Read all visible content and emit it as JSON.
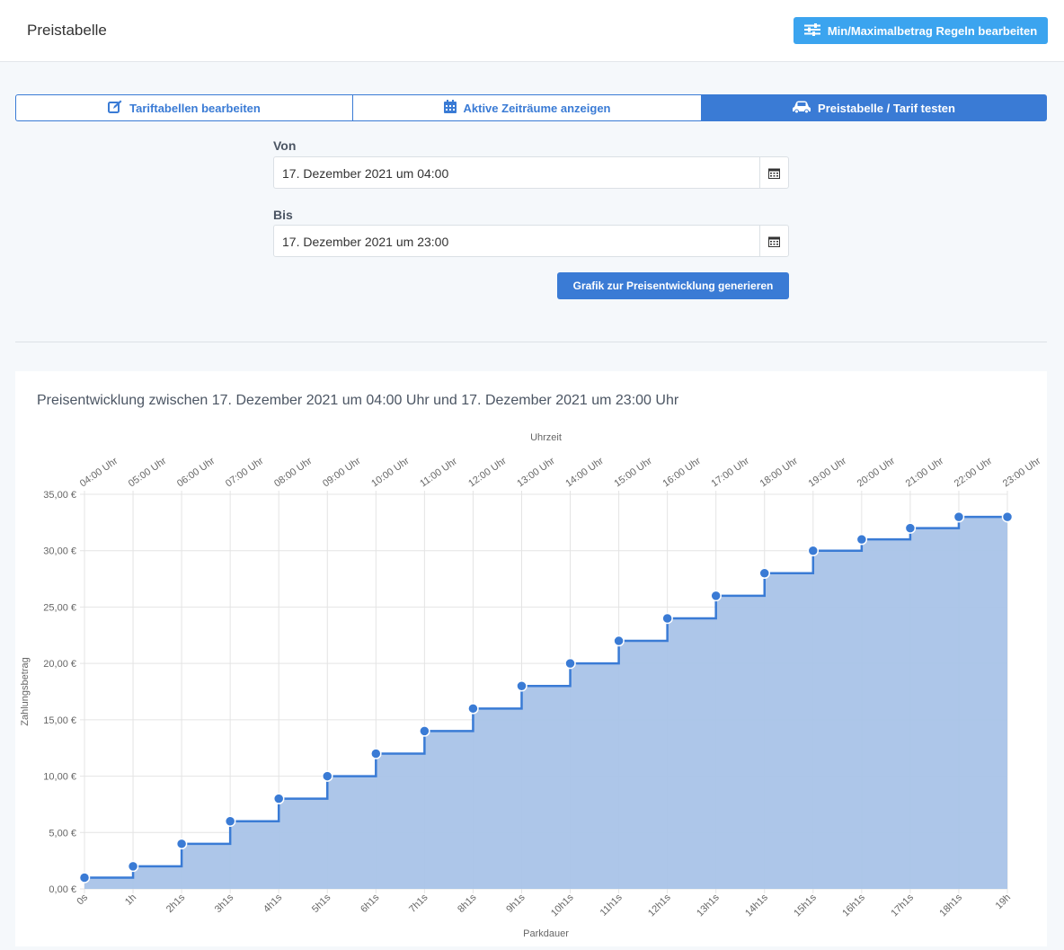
{
  "header": {
    "title": "Preistabelle",
    "rules_button": "Min/Maximalbetrag Regeln bearbeiten"
  },
  "tabs": [
    {
      "label": "Tariftabellen bearbeiten",
      "icon": "edit-icon"
    },
    {
      "label": "Aktive Zeiträume anzeigen",
      "icon": "calendar-grid-icon"
    },
    {
      "label": "Preistabelle / Tarif testen",
      "icon": "car-icon",
      "active": true
    }
  ],
  "form": {
    "von_label": "Von",
    "von_value": "17. Dezember 2021 um 04:00",
    "bis_label": "Bis",
    "bis_value": "17. Dezember 2021 um 23:00",
    "generate_button": "Grafik zur Preisentwicklung generieren"
  },
  "colors": {
    "accent": "#3a7bd5",
    "button_light": "#3ba4ef",
    "fill": "#a9c3e8"
  },
  "chart_data": {
    "type": "area",
    "title": "Preisentwicklung zwischen 17. Dezember 2021 um 04:00 Uhr und 17. Dezember 2021 um 23:00 Uhr",
    "xlabel": "Parkdauer",
    "x2label": "Uhrzeit",
    "ylabel": "Zahlungsbetrag",
    "categories": [
      "0s",
      "1h",
      "2h1s",
      "3h1s",
      "4h1s",
      "5h1s",
      "6h1s",
      "7h1s",
      "8h1s",
      "9h1s",
      "10h1s",
      "11h1s",
      "12h1s",
      "13h1s",
      "14h1s",
      "15h1s",
      "16h1s",
      "17h1s",
      "18h1s",
      "19h"
    ],
    "top_categories": [
      "04:00 Uhr",
      "05:00 Uhr",
      "06:00 Uhr",
      "07:00 Uhr",
      "08:00 Uhr",
      "09:00 Uhr",
      "10:00 Uhr",
      "11:00 Uhr",
      "12:00 Uhr",
      "13:00 Uhr",
      "14:00 Uhr",
      "15:00 Uhr",
      "16:00 Uhr",
      "17:00 Uhr",
      "18:00 Uhr",
      "19:00 Uhr",
      "20:00 Uhr",
      "21:00 Uhr",
      "22:00 Uhr",
      "23:00 Uhr"
    ],
    "values": [
      1,
      2,
      4,
      6,
      8,
      10,
      12,
      14,
      16,
      18,
      20,
      22,
      24,
      26,
      28,
      30,
      31,
      32,
      33,
      33
    ],
    "ylim": [
      0,
      35
    ],
    "yticks": [
      "0,00 €",
      "5,00 €",
      "10,00 €",
      "15,00 €",
      "20,00 €",
      "25,00 €",
      "30,00 €",
      "35,00 €"
    ],
    "step": "after",
    "grid": true
  }
}
